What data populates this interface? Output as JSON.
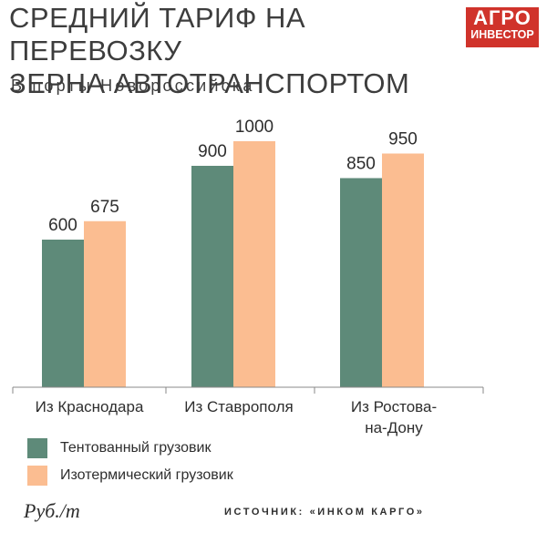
{
  "header": {
    "title_line1": "СРЕДНИЙ ТАРИФ НА ПЕРЕВОЗКУ",
    "title_line2": "ЗЕРНА АВТОТРАНСПОРТОМ",
    "subtitle": "В порты Новороссийска"
  },
  "logo": {
    "line1": "АГРО",
    "line2": "ИНВЕСТОР",
    "color": "#d0332b"
  },
  "chart_data": {
    "type": "bar",
    "title": "СРЕДНИЙ ТАРИФ НА ПЕРЕВОЗКУ ЗЕРНА АВТОТРАНСПОРТОМ",
    "subtitle": "В порты Новороссийска",
    "categories": [
      [
        "Из Краснодара"
      ],
      [
        "Из Ставрополя"
      ],
      [
        "Из Ростова-",
        "на-Дону"
      ]
    ],
    "series": [
      {
        "name": "Тентованный грузовик",
        "values": [
          600,
          900,
          850
        ],
        "color": "#5e8a79"
      },
      {
        "name": "Изотермический грузовик",
        "values": [
          675,
          1000,
          950
        ],
        "color": "#fbbd91"
      }
    ],
    "unit": "Руб./т",
    "ylim": [
      0,
      1000
    ],
    "grid": false,
    "legend_position": "bottom-left",
    "source": "ИСТОЧНИК: «ИНКОМ КАРГО»"
  }
}
